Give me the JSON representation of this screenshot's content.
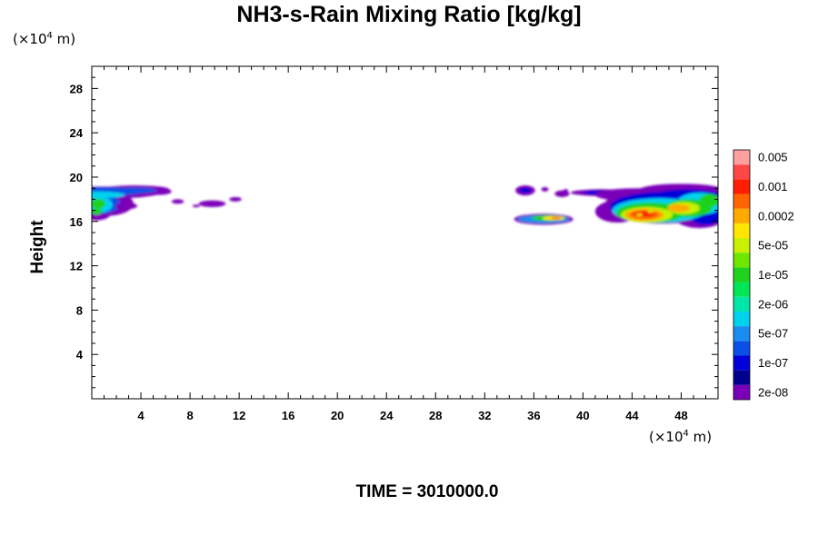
{
  "chart_data": {
    "type": "heatmap",
    "title": "NH3-s-Rain Mixing Ratio [kg/kg]",
    "ylabel": "Height",
    "x_unit": {
      "prefix": "(×10",
      "exp": "4",
      "suffix": " m)"
    },
    "y_unit": {
      "prefix": "(×10",
      "exp": "4",
      "suffix": " m)"
    },
    "xlim": [
      0,
      51
    ],
    "ylim": [
      0,
      30
    ],
    "x_ticks": [
      4,
      8,
      12,
      16,
      20,
      24,
      28,
      32,
      36,
      40,
      44,
      48
    ],
    "y_ticks": [
      4,
      8,
      12,
      16,
      20,
      24,
      28
    ],
    "time_label": "TIME = 3010000.0",
    "colorbar": {
      "colors": [
        "#7a00b8",
        "#00008c",
        "#0000d8",
        "#0a50e6",
        "#1a8cf0",
        "#00d2ee",
        "#00e6a8",
        "#00e656",
        "#1ed21e",
        "#6ee600",
        "#c8f000",
        "#ffe600",
        "#ffaa00",
        "#ff6400",
        "#ff1e00",
        "#ff4646",
        "#ffa0a0"
      ],
      "labels": [
        "2e-08",
        "1e-07",
        "5e-07",
        "2e-06",
        "1e-05",
        "5e-05",
        "0.0002",
        "0.001",
        "0.005"
      ]
    },
    "regions": [
      {
        "name": "left-cloud-core",
        "level": 6,
        "x": [
          0,
          4,
          6,
          5,
          2,
          0
        ],
        "y": [
          19.2,
          19.0,
          18.9,
          18.0,
          16.8,
          16.3
        ]
      },
      {
        "name": "left-wisps",
        "level": 0,
        "x": [
          6.5,
          9,
          11.5
        ],
        "y": [
          17.8,
          17.5,
          18.0
        ]
      },
      {
        "name": "mid-upper",
        "level": 3,
        "x": [
          35,
          40,
          44
        ],
        "y": [
          18.9,
          18.8,
          18.6
        ]
      },
      {
        "name": "mid-lower",
        "level": 11,
        "x": [
          35,
          37.5,
          39
        ],
        "y": [
          16.2,
          16.3,
          16.1
        ]
      },
      {
        "name": "right-cloud-core",
        "level": 16,
        "x": [
          42,
          45,
          48,
          51
        ],
        "y": [
          16.2,
          16.8,
          17.4,
          18.5
        ]
      }
    ]
  }
}
